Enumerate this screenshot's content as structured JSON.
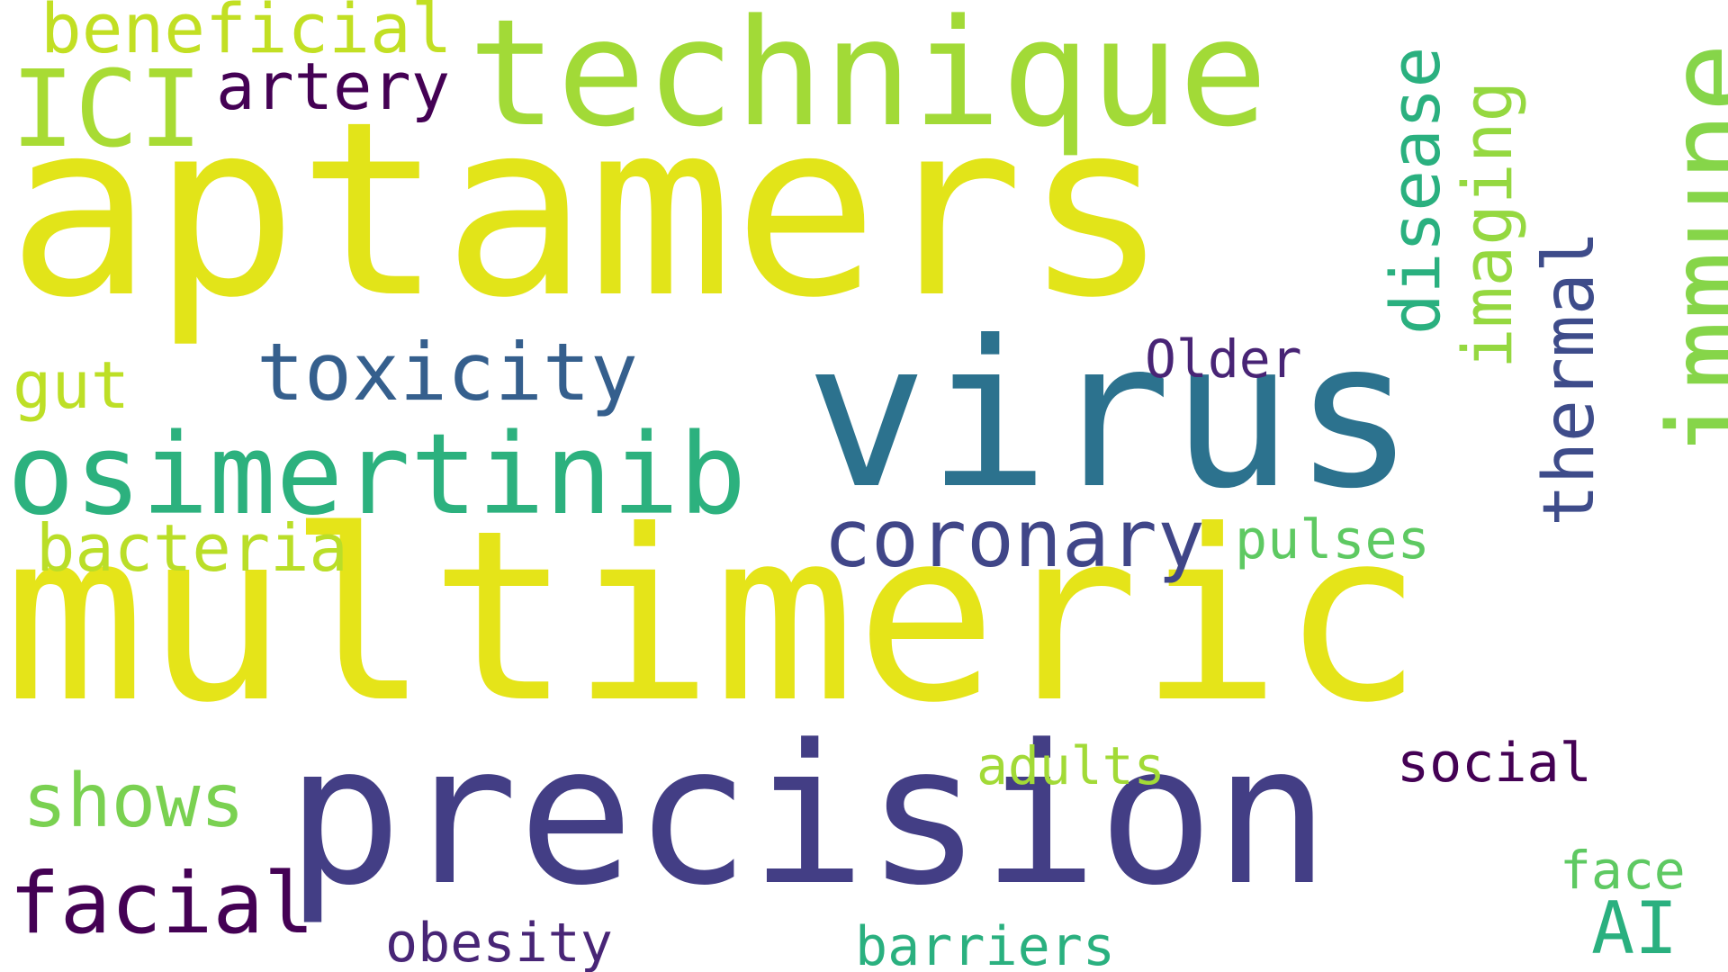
{
  "words": [
    {
      "text": "aptamers",
      "color": "#e2e419"
    },
    {
      "text": "multimeric",
      "color": "#e5e419"
    },
    {
      "text": "virus",
      "color": "#2c728e"
    },
    {
      "text": "precision",
      "color": "#433e85"
    },
    {
      "text": "technique",
      "color": "#a2da37"
    },
    {
      "text": "osimertinib",
      "color": "#2cb17e"
    },
    {
      "text": "immune",
      "color": "#86d549"
    },
    {
      "text": "ICI",
      "color": "#a8db34"
    },
    {
      "text": "toxicity",
      "color": "#355f8d"
    },
    {
      "text": "coronary",
      "color": "#404688"
    },
    {
      "text": "disease",
      "color": "#2ab07f"
    },
    {
      "text": "imaging",
      "color": "#95d840"
    },
    {
      "text": "thermal",
      "color": "#3e4c8a"
    },
    {
      "text": "facial",
      "color": "#440154"
    },
    {
      "text": "bacteria",
      "color": "#bade28"
    },
    {
      "text": "shows",
      "color": "#7ad151"
    },
    {
      "text": "beneficial",
      "color": "#c2df23"
    },
    {
      "text": "artery",
      "color": "#440154"
    },
    {
      "text": "gut",
      "color": "#bddf26"
    },
    {
      "text": "Older",
      "color": "#482475"
    },
    {
      "text": "pulses",
      "color": "#5ec962"
    },
    {
      "text": "adults",
      "color": "#a2da37"
    },
    {
      "text": "social",
      "color": "#440154"
    },
    {
      "text": "face",
      "color": "#5ec962"
    },
    {
      "text": "AI",
      "color": "#2ab07f"
    },
    {
      "text": "obesity",
      "color": "#482576"
    },
    {
      "text": "barriers",
      "color": "#2ab07f"
    }
  ]
}
